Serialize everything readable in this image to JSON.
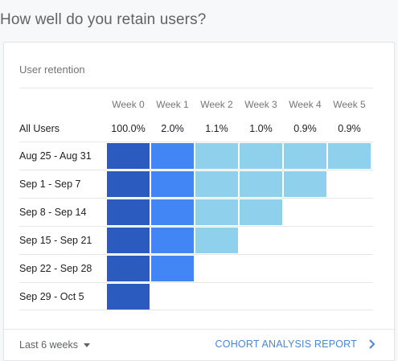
{
  "page": {
    "heading": "How well do you retain users?"
  },
  "card": {
    "title": "User retention",
    "weeks": [
      "Week 0",
      "Week 1",
      "Week 2",
      "Week 3",
      "Week 4",
      "Week 5"
    ],
    "summary": {
      "label": "All Users",
      "values": [
        "100.0%",
        "2.0%",
        "1.1%",
        "1.0%",
        "0.9%",
        "0.9%"
      ]
    },
    "cohorts": [
      {
        "label": "Aug 25 - Aug 31",
        "levels": [
          "high",
          "mid",
          "low",
          "low",
          "low",
          "low"
        ]
      },
      {
        "label": "Sep 1 - Sep 7",
        "levels": [
          "high",
          "mid",
          "low",
          "low",
          "low"
        ]
      },
      {
        "label": "Sep 8 - Sep 14",
        "levels": [
          "high",
          "mid",
          "low",
          "low"
        ]
      },
      {
        "label": "Sep 15 - Sep 21",
        "levels": [
          "high",
          "mid",
          "low"
        ]
      },
      {
        "label": "Sep 22 - Sep 28",
        "levels": [
          "high",
          "mid"
        ]
      },
      {
        "label": "Sep 29 - Oct 5",
        "levels": [
          "high"
        ]
      }
    ],
    "colors": {
      "high": "#2b5bbf",
      "mid": "#4285f4",
      "low": "#8fd1ec"
    },
    "footer": {
      "range_label": "Last 6 weeks",
      "range_icon": "caret-down-icon",
      "link_label": "COHORT ANALYSIS REPORT",
      "link_icon": "chevron-right-icon"
    }
  }
}
